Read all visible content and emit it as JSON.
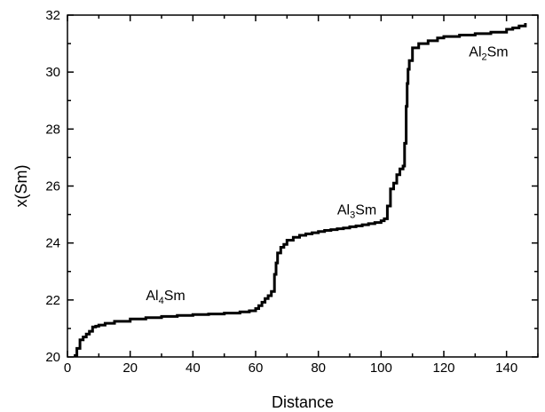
{
  "chart_data": {
    "type": "line",
    "title": "",
    "xlabel": "Distance",
    "ylabel": "x(Sm)",
    "xlim": [
      0,
      150
    ],
    "ylim": [
      20,
      32
    ],
    "xticks": [
      0,
      20,
      40,
      60,
      80,
      100,
      120,
      140
    ],
    "yticks": [
      20,
      22,
      24,
      26,
      28,
      30,
      32
    ],
    "grid": false,
    "legend": "none",
    "series": [
      {
        "color": "#000000",
        "x": [
          2,
          3,
          4,
          5,
          6,
          7,
          8,
          9,
          10,
          12,
          15,
          20,
          25,
          30,
          35,
          40,
          45,
          50,
          55,
          58,
          60,
          61,
          62,
          63,
          64,
          65,
          66,
          66.5,
          67,
          68,
          69,
          70,
          72,
          74,
          76,
          78,
          80,
          82,
          84,
          86,
          88,
          90,
          92,
          94,
          96,
          98,
          100,
          101,
          102,
          103,
          104,
          105,
          106,
          107,
          107.5,
          108,
          108.3,
          108.6,
          109,
          110,
          112,
          115,
          118,
          120,
          125,
          130,
          135,
          140,
          142,
          144,
          146
        ],
        "y": [
          20.05,
          20.3,
          20.6,
          20.7,
          20.8,
          20.9,
          21.05,
          21.08,
          21.12,
          21.18,
          21.25,
          21.33,
          21.38,
          21.42,
          21.46,
          21.49,
          21.51,
          21.54,
          21.58,
          21.62,
          21.7,
          21.8,
          21.92,
          22.05,
          22.15,
          22.3,
          22.9,
          23.3,
          23.65,
          23.85,
          23.95,
          24.1,
          24.2,
          24.27,
          24.32,
          24.36,
          24.4,
          24.44,
          24.47,
          24.5,
          24.53,
          24.57,
          24.6,
          24.64,
          24.68,
          24.72,
          24.78,
          24.85,
          25.3,
          25.9,
          26.1,
          26.4,
          26.6,
          26.7,
          27.5,
          28.8,
          29.6,
          30.1,
          30.4,
          30.85,
          31.0,
          31.1,
          31.2,
          31.25,
          31.3,
          31.35,
          31.4,
          31.5,
          31.55,
          31.62,
          31.72
        ]
      }
    ],
    "annotations": [
      {
        "label": "Al",
        "sub": "4",
        "suffix": "Sm",
        "x": 25,
        "y": 22.0
      },
      {
        "label": "Al",
        "sub": "3",
        "suffix": "Sm",
        "x": 86,
        "y": 25.0
      },
      {
        "label": "Al",
        "sub": "2",
        "suffix": "Sm",
        "x": 128,
        "y": 30.55
      }
    ]
  }
}
